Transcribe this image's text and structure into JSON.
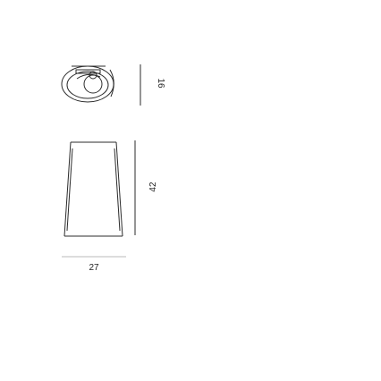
{
  "diagram": {
    "dimensions": {
      "ceiling_height": "16",
      "shade_height": "42",
      "width": "27"
    },
    "colors": {
      "line": "#2b2b2b",
      "light_line": "#bbbbbb",
      "text": "#222222"
    }
  }
}
